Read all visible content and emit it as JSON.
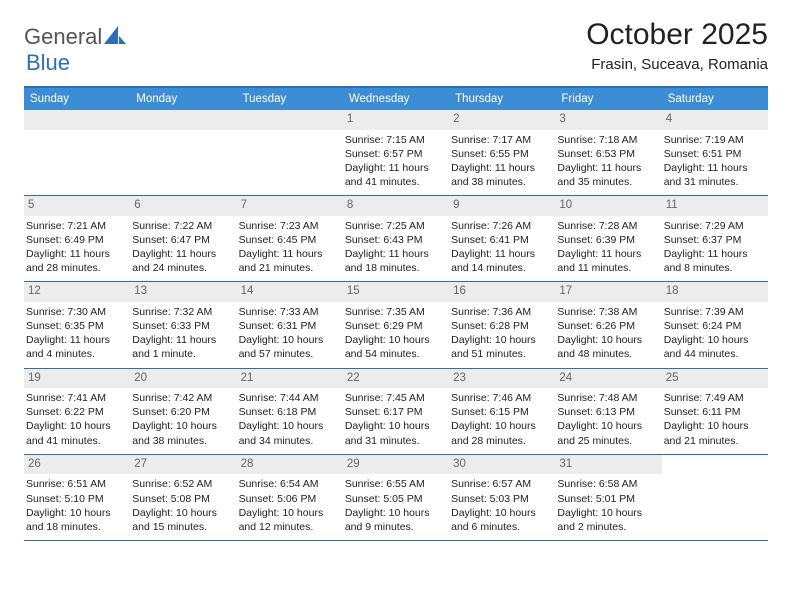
{
  "brand": {
    "part1": "General",
    "part2": "Blue",
    "color_gray": "#555555",
    "color_blue": "#2a6fb3"
  },
  "header": {
    "title": "October 2025",
    "subtitle": "Frasin, Suceava, Romania"
  },
  "colors": {
    "header_bg": "#3d8dd4",
    "header_text": "#ffffff",
    "daynum_bg": "#ececec",
    "rule": "#2a6fb3",
    "text": "#222222"
  },
  "fonts": {
    "title_size": 30,
    "subtitle_size": 15,
    "dayhdr_size": 11.5,
    "body_size": 10.5,
    "daynum_size": 11.5
  },
  "dayLabels": [
    "Sunday",
    "Monday",
    "Tuesday",
    "Wednesday",
    "Thursday",
    "Friday",
    "Saturday"
  ],
  "weeks": [
    [
      null,
      null,
      null,
      {
        "n": "1",
        "sr": "7:15 AM",
        "ss": "6:57 PM",
        "dl": "11 hours and 41 minutes."
      },
      {
        "n": "2",
        "sr": "7:17 AM",
        "ss": "6:55 PM",
        "dl": "11 hours and 38 minutes."
      },
      {
        "n": "3",
        "sr": "7:18 AM",
        "ss": "6:53 PM",
        "dl": "11 hours and 35 minutes."
      },
      {
        "n": "4",
        "sr": "7:19 AM",
        "ss": "6:51 PM",
        "dl": "11 hours and 31 minutes."
      }
    ],
    [
      {
        "n": "5",
        "sr": "7:21 AM",
        "ss": "6:49 PM",
        "dl": "11 hours and 28 minutes."
      },
      {
        "n": "6",
        "sr": "7:22 AM",
        "ss": "6:47 PM",
        "dl": "11 hours and 24 minutes."
      },
      {
        "n": "7",
        "sr": "7:23 AM",
        "ss": "6:45 PM",
        "dl": "11 hours and 21 minutes."
      },
      {
        "n": "8",
        "sr": "7:25 AM",
        "ss": "6:43 PM",
        "dl": "11 hours and 18 minutes."
      },
      {
        "n": "9",
        "sr": "7:26 AM",
        "ss": "6:41 PM",
        "dl": "11 hours and 14 minutes."
      },
      {
        "n": "10",
        "sr": "7:28 AM",
        "ss": "6:39 PM",
        "dl": "11 hours and 11 minutes."
      },
      {
        "n": "11",
        "sr": "7:29 AM",
        "ss": "6:37 PM",
        "dl": "11 hours and 8 minutes."
      }
    ],
    [
      {
        "n": "12",
        "sr": "7:30 AM",
        "ss": "6:35 PM",
        "dl": "11 hours and 4 minutes."
      },
      {
        "n": "13",
        "sr": "7:32 AM",
        "ss": "6:33 PM",
        "dl": "11 hours and 1 minute."
      },
      {
        "n": "14",
        "sr": "7:33 AM",
        "ss": "6:31 PM",
        "dl": "10 hours and 57 minutes."
      },
      {
        "n": "15",
        "sr": "7:35 AM",
        "ss": "6:29 PM",
        "dl": "10 hours and 54 minutes."
      },
      {
        "n": "16",
        "sr": "7:36 AM",
        "ss": "6:28 PM",
        "dl": "10 hours and 51 minutes."
      },
      {
        "n": "17",
        "sr": "7:38 AM",
        "ss": "6:26 PM",
        "dl": "10 hours and 48 minutes."
      },
      {
        "n": "18",
        "sr": "7:39 AM",
        "ss": "6:24 PM",
        "dl": "10 hours and 44 minutes."
      }
    ],
    [
      {
        "n": "19",
        "sr": "7:41 AM",
        "ss": "6:22 PM",
        "dl": "10 hours and 41 minutes."
      },
      {
        "n": "20",
        "sr": "7:42 AM",
        "ss": "6:20 PM",
        "dl": "10 hours and 38 minutes."
      },
      {
        "n": "21",
        "sr": "7:44 AM",
        "ss": "6:18 PM",
        "dl": "10 hours and 34 minutes."
      },
      {
        "n": "22",
        "sr": "7:45 AM",
        "ss": "6:17 PM",
        "dl": "10 hours and 31 minutes."
      },
      {
        "n": "23",
        "sr": "7:46 AM",
        "ss": "6:15 PM",
        "dl": "10 hours and 28 minutes."
      },
      {
        "n": "24",
        "sr": "7:48 AM",
        "ss": "6:13 PM",
        "dl": "10 hours and 25 minutes."
      },
      {
        "n": "25",
        "sr": "7:49 AM",
        "ss": "6:11 PM",
        "dl": "10 hours and 21 minutes."
      }
    ],
    [
      {
        "n": "26",
        "sr": "6:51 AM",
        "ss": "5:10 PM",
        "dl": "10 hours and 18 minutes."
      },
      {
        "n": "27",
        "sr": "6:52 AM",
        "ss": "5:08 PM",
        "dl": "10 hours and 15 minutes."
      },
      {
        "n": "28",
        "sr": "6:54 AM",
        "ss": "5:06 PM",
        "dl": "10 hours and 12 minutes."
      },
      {
        "n": "29",
        "sr": "6:55 AM",
        "ss": "5:05 PM",
        "dl": "10 hours and 9 minutes."
      },
      {
        "n": "30",
        "sr": "6:57 AM",
        "ss": "5:03 PM",
        "dl": "10 hours and 6 minutes."
      },
      {
        "n": "31",
        "sr": "6:58 AM",
        "ss": "5:01 PM",
        "dl": "10 hours and 2 minutes."
      },
      null
    ]
  ],
  "labels": {
    "sunrise": "Sunrise:",
    "sunset": "Sunset:",
    "daylight": "Daylight:"
  }
}
